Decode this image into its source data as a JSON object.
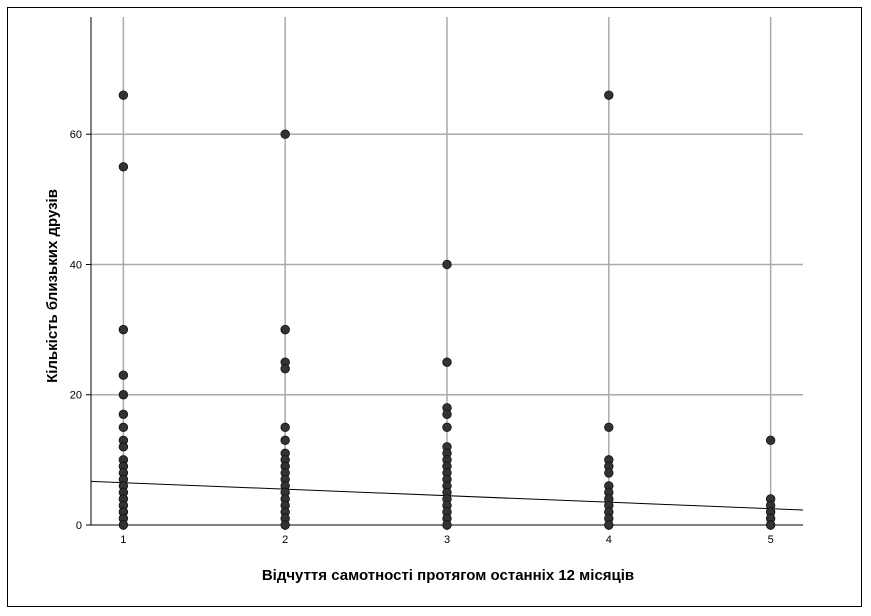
{
  "chart_data": {
    "type": "scatter",
    "xlabel": "Відчуття самотності протягом останніх 12 місяців",
    "ylabel": "Кількість близьких друзів",
    "xlim": [
      0.8,
      5.2
    ],
    "ylim": [
      0,
      78
    ],
    "x_ticks": [
      1,
      2,
      3,
      4,
      5
    ],
    "y_ticks": [
      0,
      20,
      40,
      60
    ],
    "grid": true,
    "point_color": "#333333",
    "grid_color": "#aaaaaa",
    "series": [
      {
        "points": [
          [
            1,
            66
          ],
          [
            1,
            55
          ],
          [
            1,
            30
          ],
          [
            1,
            23
          ],
          [
            1,
            20
          ],
          [
            1,
            17
          ],
          [
            1,
            15
          ],
          [
            1,
            13
          ],
          [
            1,
            12
          ],
          [
            1,
            10
          ],
          [
            1,
            9
          ],
          [
            1,
            8
          ],
          [
            1,
            7
          ],
          [
            1,
            6
          ],
          [
            1,
            5
          ],
          [
            1,
            4
          ],
          [
            1,
            3
          ],
          [
            1,
            2
          ],
          [
            1,
            1
          ],
          [
            1,
            0
          ],
          [
            2,
            60
          ],
          [
            2,
            30
          ],
          [
            2,
            25
          ],
          [
            2,
            24
          ],
          [
            2,
            15
          ],
          [
            2,
            13
          ],
          [
            2,
            11
          ],
          [
            2,
            10
          ],
          [
            2,
            9
          ],
          [
            2,
            8
          ],
          [
            2,
            7
          ],
          [
            2,
            6
          ],
          [
            2,
            5
          ],
          [
            2,
            4
          ],
          [
            2,
            3
          ],
          [
            2,
            2
          ],
          [
            2,
            1
          ],
          [
            2,
            0
          ],
          [
            3,
            40
          ],
          [
            3,
            25
          ],
          [
            3,
            18
          ],
          [
            3,
            17
          ],
          [
            3,
            15
          ],
          [
            3,
            12
          ],
          [
            3,
            11
          ],
          [
            3,
            10
          ],
          [
            3,
            9
          ],
          [
            3,
            8
          ],
          [
            3,
            7
          ],
          [
            3,
            6
          ],
          [
            3,
            5
          ],
          [
            3,
            4
          ],
          [
            3,
            3
          ],
          [
            3,
            2
          ],
          [
            3,
            1
          ],
          [
            3,
            0
          ],
          [
            4,
            66
          ],
          [
            4,
            15
          ],
          [
            4,
            10
          ],
          [
            4,
            9
          ],
          [
            4,
            8
          ],
          [
            4,
            6
          ],
          [
            4,
            5
          ],
          [
            4,
            4
          ],
          [
            4,
            3
          ],
          [
            4,
            2
          ],
          [
            4,
            1
          ],
          [
            4,
            0
          ],
          [
            5,
            13
          ],
          [
            5,
            4
          ],
          [
            5,
            3
          ],
          [
            5,
            2
          ],
          [
            5,
            1
          ],
          [
            5,
            0
          ]
        ]
      }
    ],
    "fit_line": {
      "x": [
        0.8,
        5.2
      ],
      "y": [
        6.7,
        2.3
      ]
    }
  }
}
